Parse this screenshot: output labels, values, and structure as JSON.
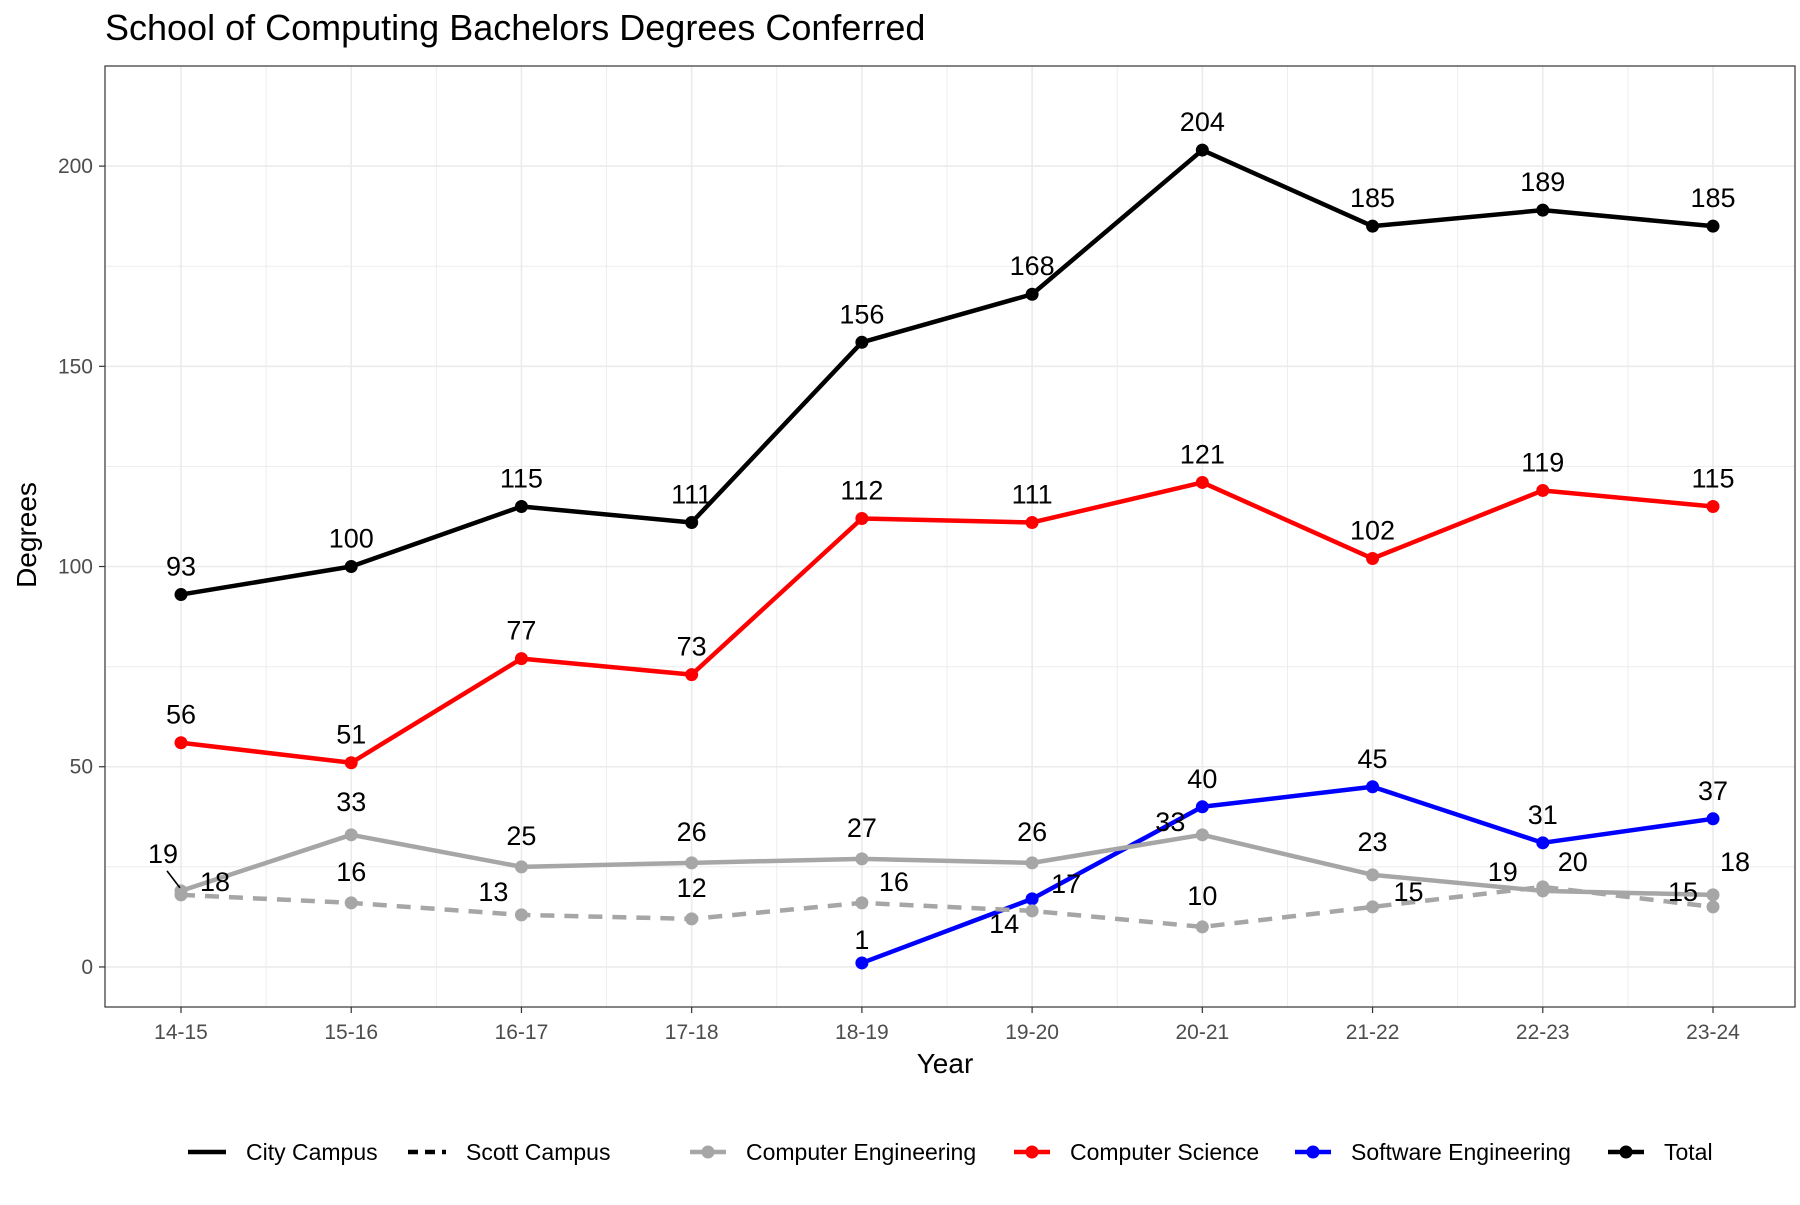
{
  "chart_data": {
    "type": "line",
    "title": "School of Computing Bachelors Degrees Conferred",
    "xlabel": "Year",
    "ylabel": "Degrees",
    "categories": [
      "14-15",
      "15-16",
      "16-17",
      "17-18",
      "18-19",
      "19-20",
      "20-21",
      "21-22",
      "22-23",
      "23-24"
    ],
    "ylim": [
      -10,
      225
    ],
    "yticks": [
      0,
      50,
      100,
      150,
      200
    ],
    "grid": true,
    "legend_position": "bottom",
    "series": [
      {
        "name": "Total",
        "campus": "City Campus",
        "color": "#000000",
        "values": [
          93,
          100,
          115,
          111,
          156,
          168,
          204,
          185,
          189,
          185
        ]
      },
      {
        "name": "Computer Science",
        "campus": "City Campus",
        "color": "#ff0000",
        "values": [
          56,
          51,
          77,
          73,
          112,
          111,
          121,
          102,
          119,
          115
        ]
      },
      {
        "name": "Software Engineering",
        "campus": "City Campus",
        "color": "#0000ff",
        "values": [
          null,
          null,
          null,
          null,
          1,
          17,
          40,
          45,
          31,
          37
        ]
      },
      {
        "name": "Computer Engineering",
        "campus": "City Campus",
        "color": "#a6a6a6",
        "values": [
          19,
          33,
          25,
          26,
          27,
          26,
          33,
          23,
          19,
          18
        ]
      },
      {
        "name": "Computer Engineering",
        "campus": "Scott Campus",
        "color": "#a6a6a6",
        "values": [
          18,
          16,
          13,
          12,
          16,
          14,
          10,
          15,
          20,
          15
        ]
      }
    ],
    "legend": {
      "linetype": [
        {
          "label": "City Campus",
          "style": "solid"
        },
        {
          "label": "Scott Campus",
          "style": "dashed"
        }
      ],
      "program": [
        {
          "label": "Computer Engineering",
          "color": "#a6a6a6"
        },
        {
          "label": "Computer Science",
          "color": "#ff0000"
        },
        {
          "label": "Software Engineering",
          "color": "#0000ff"
        },
        {
          "label": "Total",
          "color": "#000000"
        }
      ]
    }
  }
}
